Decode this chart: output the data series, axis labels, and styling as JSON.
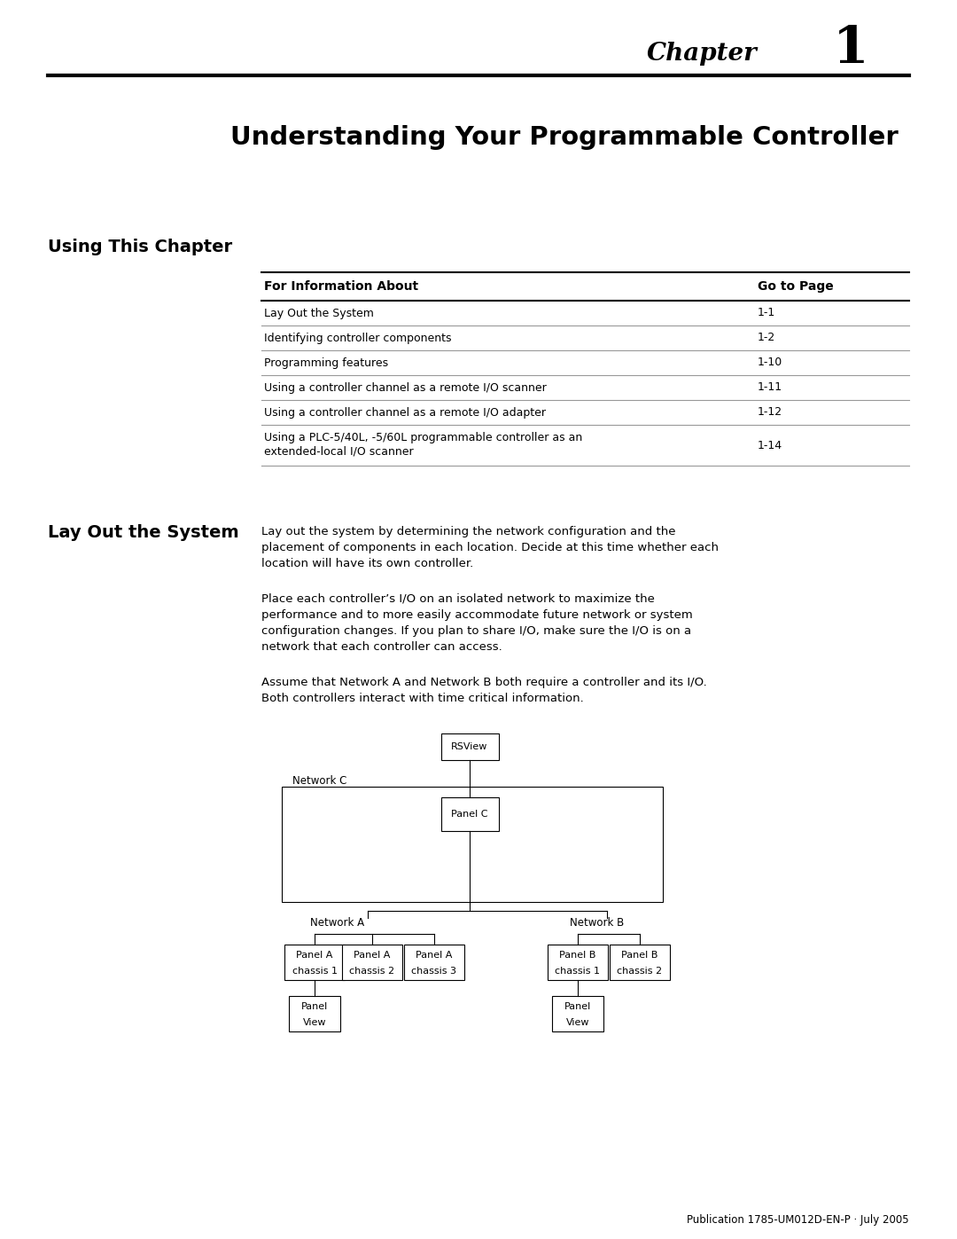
{
  "page_bg": "#ffffff",
  "chapter_label": "Chapter",
  "chapter_number": "1",
  "title": "Understanding Your Programmable Controller",
  "section1_heading": "Using This Chapter",
  "table_header_col1": "For Information About",
  "table_header_col2": "Go to Page",
  "table_rows": [
    [
      "Lay Out the System",
      "1-1"
    ],
    [
      "Identifying controller components",
      "1-2"
    ],
    [
      "Programming features",
      "1-10"
    ],
    [
      "Using a controller channel as a remote I/O scanner",
      "1-11"
    ],
    [
      "Using a controller channel as a remote I/O adapter",
      "1-12"
    ],
    [
      "Using a PLC-5/40L, -5/60L programmable controller as an\nextended-local I/O scanner",
      "1-14"
    ]
  ],
  "section2_heading": "Lay Out the System",
  "p1_lines": [
    "Lay out the system by determining the network configuration and the",
    "placement of components in each location. Decide at this time whether each",
    "location will have its own controller."
  ],
  "p2_lines": [
    "Place each controller’s I/O on an isolated network to maximize the",
    "performance and to more easily accommodate future network or system",
    "configuration changes. If you plan to share I/O, make sure the I/O is on a",
    "network that each controller can access."
  ],
  "p3_lines": [
    "Assume that Network A and Network B both require a controller and its I/O.",
    "Both controllers interact with time critical information."
  ],
  "footer": "Publication 1785-UM012D-EN-P · July 2005"
}
